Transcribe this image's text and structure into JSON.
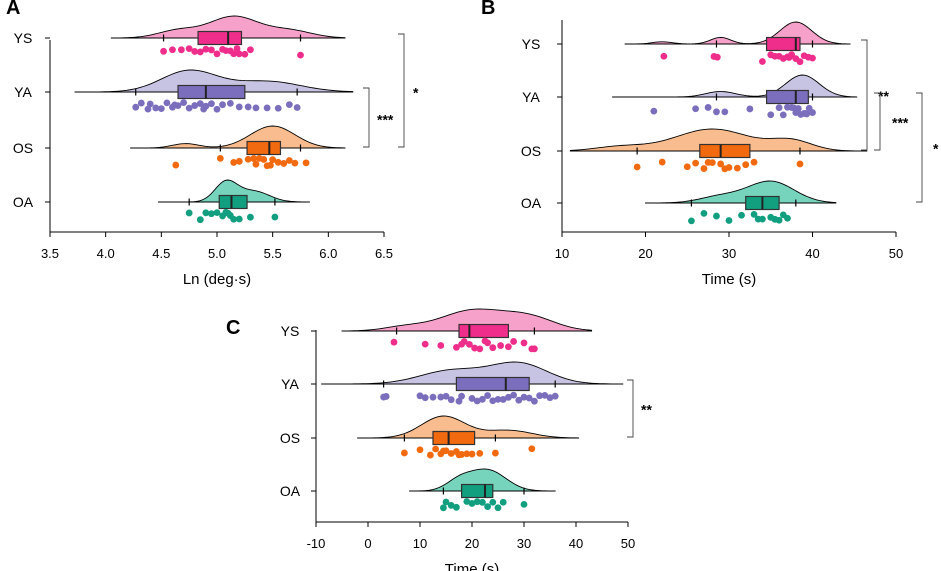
{
  "colors": {
    "YS": "#ee2e8a",
    "YA": "#7b6fbd",
    "OS": "#f26a0f",
    "OA": "#119f80",
    "YS_fill": "#f490c0",
    "YA_fill": "#bdb8dd",
    "OS_fill": "#f8b07a",
    "OA_fill": "#5fcdb0"
  },
  "chart_data": [
    {
      "panel": "A",
      "type": "raincloud",
      "xlabel": "Ln (deg·s)",
      "xlim": [
        3.5,
        6.5
      ],
      "ticks": [
        3.5,
        4.0,
        4.5,
        5.0,
        5.5,
        6.0,
        6.5
      ],
      "tick_labels": [
        "3.5",
        "4.0",
        "4.5",
        "5.0",
        "5.5",
        "6.0",
        "6.5"
      ],
      "groups": [
        {
          "name": "YS",
          "range": [
            4.05,
            6.15
          ],
          "whisker": [
            4.52,
            5.75
          ],
          "box": [
            4.83,
            5.22
          ],
          "median": 5.1,
          "peaks": [
            [
              5.15,
              0.22,
              1.0
            ],
            [
              4.65,
              0.18,
              0.35
            ],
            [
              5.65,
              0.2,
              0.35
            ]
          ],
          "points": [
            4.52,
            4.6,
            4.68,
            4.75,
            4.85,
            4.9,
            4.95,
            5.0,
            5.05,
            5.08,
            5.12,
            5.15,
            5.2,
            5.25,
            5.3,
            5.75,
            4.8,
            5.18
          ]
        },
        {
          "name": "YA",
          "range": [
            3.72,
            6.22
          ],
          "whisker": [
            4.27,
            5.72
          ],
          "box": [
            4.65,
            5.25
          ],
          "median": 4.9,
          "peaks": [
            [
              4.75,
              0.25,
              1.0
            ],
            [
              5.45,
              0.3,
              0.5
            ]
          ],
          "points": [
            4.27,
            4.32,
            4.38,
            4.45,
            4.5,
            4.55,
            4.6,
            4.65,
            4.7,
            4.75,
            4.8,
            4.85,
            4.9,
            4.95,
            5.0,
            5.05,
            5.12,
            5.2,
            5.28,
            5.35,
            5.45,
            5.55,
            5.65,
            5.72,
            4.4,
            4.62,
            4.88
          ]
        },
        {
          "name": "OS",
          "range": [
            4.22,
            6.15
          ],
          "whisker": [
            5.03,
            5.75
          ],
          "box": [
            5.27,
            5.57
          ],
          "median": 5.47,
          "peaks": [
            [
              5.5,
              0.2,
              1.0
            ],
            [
              4.72,
              0.12,
              0.2
            ]
          ],
          "points": [
            4.63,
            5.03,
            5.15,
            5.2,
            5.28,
            5.33,
            5.38,
            5.42,
            5.45,
            5.5,
            5.55,
            5.6,
            5.65,
            5.7,
            5.8,
            5.35,
            5.48
          ]
        },
        {
          "name": "OA",
          "range": [
            4.47,
            5.83
          ],
          "whisker": [
            4.75,
            5.52
          ],
          "box": [
            5.02,
            5.27
          ],
          "median": 5.13,
          "peaks": [
            [
              5.08,
              0.1,
              1.0
            ],
            [
              5.33,
              0.14,
              0.55
            ]
          ],
          "points": [
            4.75,
            4.85,
            4.95,
            5.0,
            5.05,
            5.08,
            5.12,
            5.15,
            5.2,
            5.3,
            5.52,
            5.1,
            4.9
          ]
        }
      ],
      "brackets": [
        {
          "from": "YS",
          "to": "OS",
          "label": "*"
        },
        {
          "from": "YA",
          "to": "OS",
          "label": "***"
        }
      ]
    },
    {
      "panel": "B",
      "type": "raincloud",
      "xlabel": "Time (s)",
      "xlim": [
        10,
        50
      ],
      "ticks": [
        10,
        20,
        30,
        40,
        50
      ],
      "tick_labels": [
        "10",
        "20",
        "30",
        "40",
        "50"
      ],
      "groups": [
        {
          "name": "YS",
          "range": [
            17.5,
            44.5
          ],
          "whisker": [
            28.5,
            40
          ],
          "box": [
            34.5,
            38.5
          ],
          "median": 38,
          "peaks": [
            [
              38,
              1.9,
              1.0
            ],
            [
              29,
              1.2,
              0.3
            ],
            [
              22,
              1.2,
              0.1
            ]
          ],
          "points": [
            22.2,
            28.2,
            28.6,
            34,
            35.5,
            36,
            36.5,
            37,
            37.5,
            38,
            38.5,
            39,
            39.5,
            40,
            35,
            37.2
          ]
        },
        {
          "name": "YA",
          "range": [
            16,
            45.3
          ],
          "whisker": [
            28.5,
            40
          ],
          "box": [
            34.5,
            39.5
          ],
          "median": 38,
          "peaks": [
            [
              38.8,
              2.0,
              1.0
            ],
            [
              29,
              1.8,
              0.25
            ]
          ],
          "points": [
            21,
            26,
            27.5,
            28.5,
            29.5,
            32.5,
            35,
            36,
            36.5,
            37,
            37.5,
            38,
            38.3,
            38.6,
            39,
            39.3,
            39.6,
            40,
            38.2,
            37.8,
            39.2
          ]
        },
        {
          "name": "OS",
          "range": [
            11,
            46.5
          ],
          "whisker": [
            19,
            38.5
          ],
          "box": [
            26.5,
            32.5
          ],
          "median": 29,
          "peaks": [
            [
              28,
              4.5,
              1.0
            ],
            [
              37.5,
              2.5,
              0.45
            ],
            [
              17,
              3.0,
              0.2
            ]
          ],
          "points": [
            19,
            22,
            25,
            26,
            27,
            28,
            29,
            30,
            31,
            32,
            33,
            27.5,
            29.5,
            38.5
          ]
        },
        {
          "name": "OA",
          "range": [
            20,
            42.8
          ],
          "whisker": [
            25.5,
            38
          ],
          "box": [
            32,
            36
          ],
          "median": 34,
          "peaks": [
            [
              35,
              2.8,
              1.0
            ],
            [
              29,
              2.5,
              0.3
            ]
          ],
          "points": [
            25.5,
            27,
            28.5,
            30,
            31.5,
            33,
            34,
            35,
            35.5,
            36,
            36.5,
            37,
            33.5
          ]
        }
      ],
      "brackets": [
        {
          "from": "YS",
          "to": "OS",
          "label": "**"
        },
        {
          "from": "YA",
          "to": "OS",
          "label": "***"
        },
        {
          "from": "YA",
          "to": "OA",
          "label": "*"
        }
      ]
    },
    {
      "panel": "C",
      "type": "raincloud",
      "xlabel": "Time (s)",
      "xlim": [
        -10,
        50
      ],
      "ticks": [
        -10,
        0,
        10,
        20,
        30,
        40,
        50
      ],
      "tick_labels": [
        "-10",
        "0",
        "10",
        "20",
        "30",
        "40",
        "50"
      ],
      "groups": [
        {
          "name": "YS",
          "range": [
            -5,
            43
          ],
          "whisker": [
            5.5,
            32
          ],
          "box": [
            17.5,
            27
          ],
          "median": 19.5,
          "peaks": [
            [
              20,
              6.0,
              1.0
            ],
            [
              31,
              5.0,
              0.65
            ],
            [
              7,
              4.0,
              0.2
            ]
          ],
          "points": [
            5,
            11,
            14,
            17,
            18.5,
            19.5,
            20.5,
            21.5,
            22.5,
            24,
            25.5,
            27,
            28,
            30,
            31.5,
            32,
            18,
            23
          ]
        },
        {
          "name": "YA",
          "range": [
            -9,
            49
          ],
          "whisker": [
            3,
            36
          ],
          "box": [
            17,
            31
          ],
          "median": 26.5,
          "peaks": [
            [
              29,
              5.5,
              1.0
            ],
            [
              16,
              6.0,
              0.65
            ]
          ],
          "points": [
            3,
            3.5,
            10,
            11,
            12.5,
            14,
            15,
            16,
            17.5,
            18,
            22,
            23,
            24,
            25,
            26,
            27,
            28,
            29,
            30,
            31,
            32,
            33,
            34,
            35,
            36,
            20,
            21
          ]
        },
        {
          "name": "OS",
          "range": [
            -2,
            40.5
          ],
          "whisker": [
            7,
            24.5
          ],
          "box": [
            12.5,
            20.5
          ],
          "median": 15.5,
          "peaks": [
            [
              14.5,
              4.2,
              1.0
            ],
            [
              27,
              4.5,
              0.35
            ]
          ],
          "points": [
            7,
            10,
            12,
            13,
            14,
            15,
            16,
            17,
            18,
            19,
            20,
            21.5,
            24.5,
            31.5,
            14.5,
            17.5
          ]
        },
        {
          "name": "OA",
          "range": [
            8,
            36
          ],
          "whisker": [
            14.5,
            30
          ],
          "box": [
            18,
            24
          ],
          "median": 22.5,
          "peaks": [
            [
              23,
              3.5,
              1.0
            ],
            [
              17.5,
              2.5,
              0.45
            ]
          ],
          "points": [
            14.5,
            15,
            16,
            17,
            19,
            20,
            21,
            22,
            23,
            24,
            25,
            26,
            30
          ]
        }
      ],
      "brackets": [
        {
          "from": "YA",
          "to": "OS",
          "label": "**"
        }
      ]
    }
  ]
}
